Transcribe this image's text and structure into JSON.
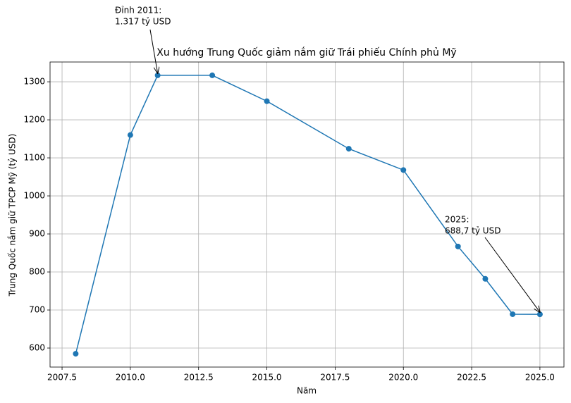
{
  "chart_data": {
    "type": "line",
    "title": "Xu hướng Trung Quốc giảm nắm giữ Trái phiếu Chính phủ Mỹ",
    "xlabel": "Năm",
    "ylabel": "Trung Quốc nắm giữ TPCP Mỹ (tỷ USD)",
    "x": [
      2008,
      2010,
      2011,
      2013,
      2015,
      2018,
      2020,
      2022,
      2023,
      2024,
      2025
    ],
    "values": [
      585,
      1160,
      1317,
      1317,
      1249,
      1124,
      1068,
      867,
      782,
      689,
      688.7
    ],
    "color": "#1f77b4",
    "xlim": [
      2007.06,
      2025.88
    ],
    "ylim": [
      550,
      1352
    ],
    "xticks": [
      {
        "value": 2007.5,
        "label": "2007.5"
      },
      {
        "value": 2010,
        "label": "2010.0"
      },
      {
        "value": 2012.5,
        "label": "2012.5"
      },
      {
        "value": 2015,
        "label": "2015.0"
      },
      {
        "value": 2017.5,
        "label": "2017.5"
      },
      {
        "value": 2020,
        "label": "2020.0"
      },
      {
        "value": 2022.5,
        "label": "2022.5"
      },
      {
        "value": 2025,
        "label": "2025.0"
      }
    ],
    "yticks": [
      600,
      700,
      800,
      900,
      1000,
      1100,
      1200,
      1300
    ],
    "grid": true,
    "annotations": [
      {
        "lines": [
          "Đỉnh 2011:",
          "1.317 tỷ USD"
        ]
      },
      {
        "lines": [
          "2025:",
          "688,7 tỷ USD"
        ]
      }
    ]
  }
}
